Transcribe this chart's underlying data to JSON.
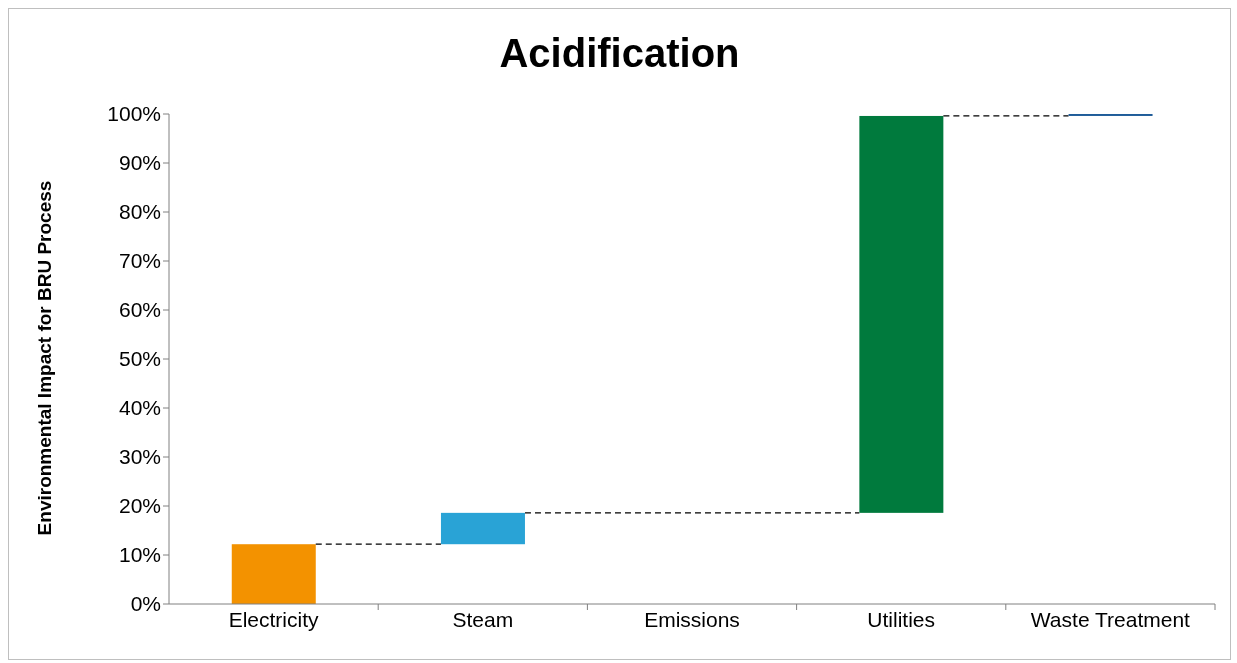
{
  "chart_data": {
    "type": "bar",
    "title": "Acidification",
    "ylabel": "Environmental Impact for BRU Process",
    "categories": [
      "Electricity",
      "Steam",
      "Emissions",
      "Utilities",
      "Waste Treatment"
    ],
    "values": [
      12.2,
      6.4,
      null,
      81,
      0.4
    ],
    "base": [
      0,
      12.2,
      null,
      18.6,
      99.6
    ],
    "colors": [
      "#f39200",
      "#29a3d6",
      null,
      "#007a3d",
      "#1f5c99"
    ],
    "ylim": [
      0,
      100
    ],
    "yticks": [
      {
        "value": 0,
        "label": "0%"
      },
      {
        "value": 10,
        "label": "10%"
      },
      {
        "value": 20,
        "label": "20%"
      },
      {
        "value": 30,
        "label": "30%"
      },
      {
        "value": 40,
        "label": "40%"
      },
      {
        "value": 50,
        "label": "50%"
      },
      {
        "value": 60,
        "label": "60%"
      },
      {
        "value": 70,
        "label": "70%"
      },
      {
        "value": 80,
        "label": "80%"
      },
      {
        "value": 90,
        "label": "90%"
      },
      {
        "value": 100,
        "label": "100%"
      }
    ],
    "grid": false,
    "legend": false
  }
}
